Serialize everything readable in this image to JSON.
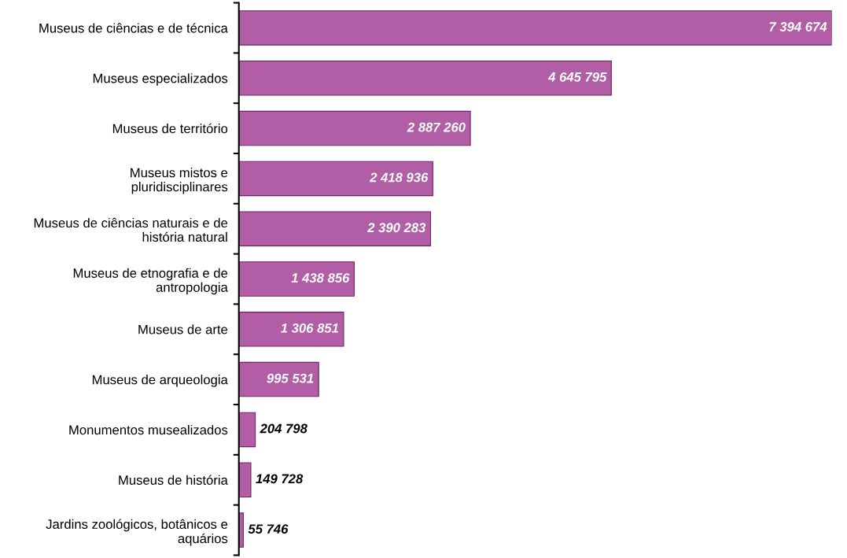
{
  "chart_data": {
    "type": "bar",
    "orientation": "horizontal",
    "categories": [
      "Museus de ciências e de técnica",
      "Museus especializados",
      "Museus de território",
      "Museus mistos e\npluridisciplinares",
      "Museus de ciências naturais e de\nhistória natural",
      "Museus de etnografia e de\nantropologia",
      "Museus de arte",
      "Museus de arqueologia",
      "Monumentos musealizados",
      "Museus de história",
      "Jardins zoológicos, botânicos e\naquários"
    ],
    "values": [
      7394674,
      4645795,
      2887260,
      2418936,
      2390283,
      1438856,
      1306851,
      995531,
      204798,
      149728,
      55746
    ],
    "value_labels": [
      "7 394 674",
      "4 645 795",
      "2 887 260",
      "2 418 936",
      "2 390 283",
      "1 438 856",
      "1 306 851",
      "995 531",
      "204 798",
      "149 728",
      "55 746"
    ],
    "color": "#b25ea6",
    "tick_labels": "y",
    "grid": false,
    "legend": false
  }
}
